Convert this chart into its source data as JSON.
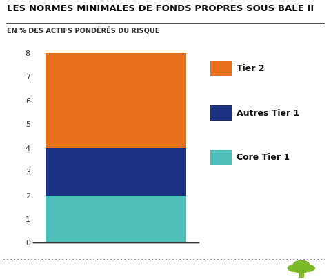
{
  "title": "LES NORMES MINIMALES DE FONDS PROPRES SOUS BALE II",
  "subtitle": "EN % DES ACTIFS PONDÉRÉS DU RISQUE",
  "segments": [
    {
      "label": "Core Tier 1",
      "value": 2,
      "color": "#4DBFB8"
    },
    {
      "label": "Autres Tier 1",
      "value": 2,
      "color": "#1B3082"
    },
    {
      "label": "Tier 2",
      "value": 4,
      "color": "#E8701A"
    }
  ],
  "ylim": [
    0,
    8
  ],
  "yticks": [
    0,
    1,
    2,
    3,
    4,
    5,
    6,
    7,
    8
  ],
  "background_color": "#FFFFFF",
  "title_fontsize": 9.5,
  "subtitle_fontsize": 7.0,
  "legend_fontsize": 9,
  "tick_fontsize": 8,
  "dotted_line_color": "#555555",
  "tree_color": "#7AB826",
  "axis_color": "#333333",
  "separator_color": "#333333"
}
